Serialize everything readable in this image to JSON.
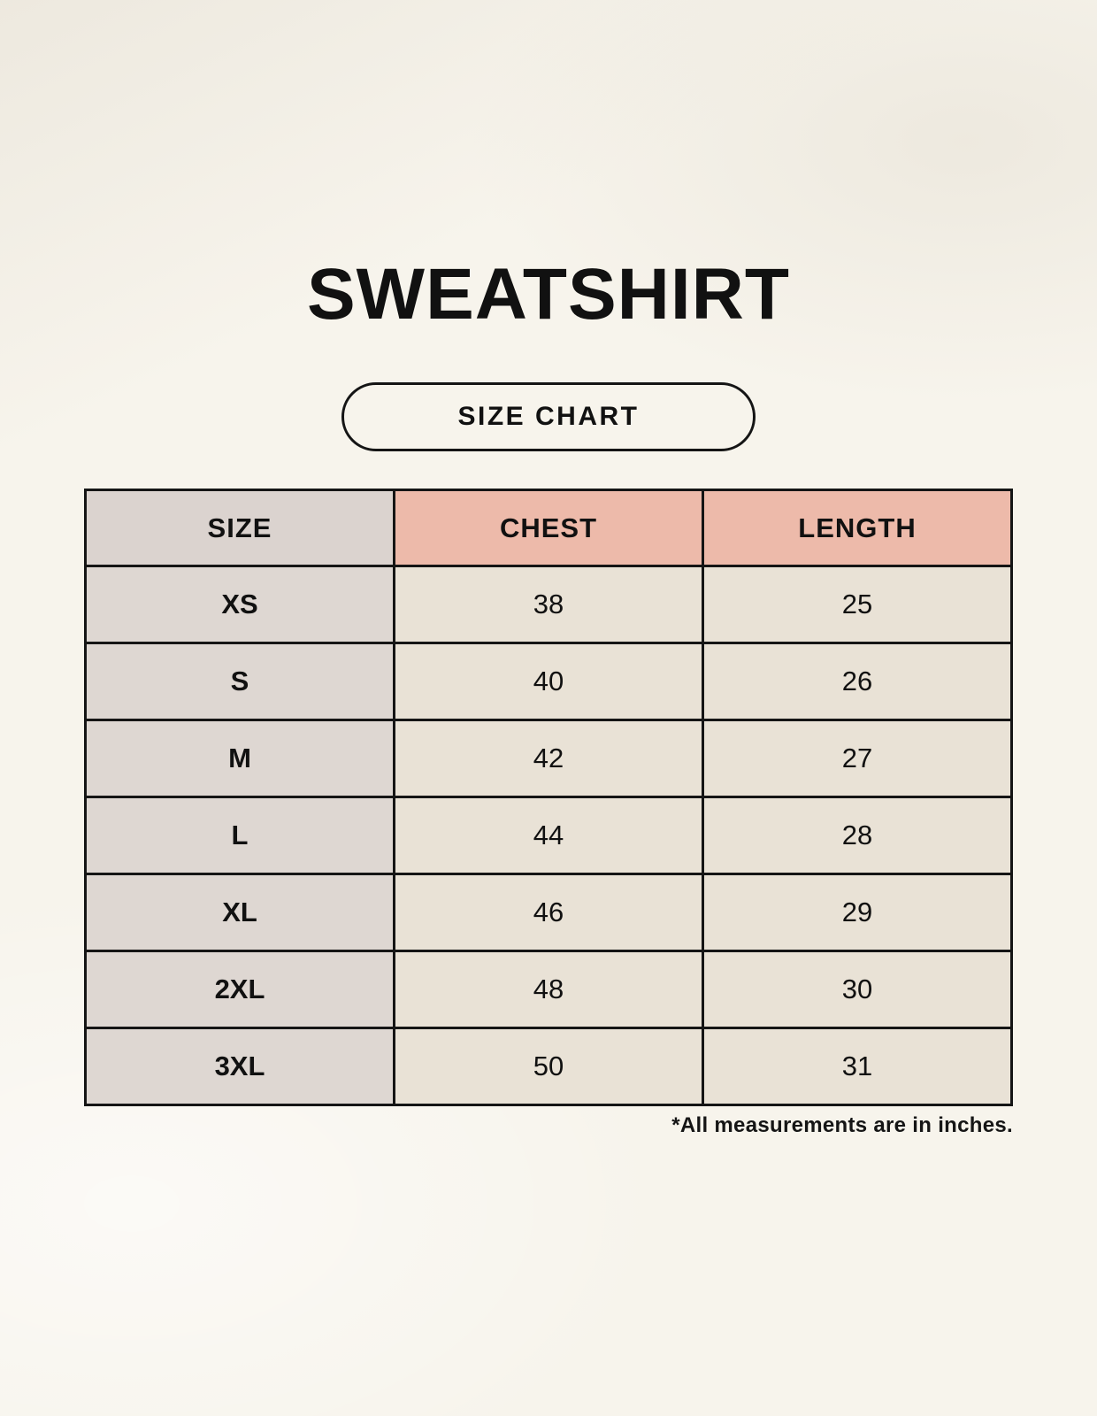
{
  "poster": {
    "title": "SWEATSHIRT",
    "size_chart_button_label": "SIZE CHART",
    "footnote": "*All measurements are in inches."
  },
  "chart_data": {
    "type": "table",
    "title": "SWEATSHIRT",
    "columns": [
      "SIZE",
      "CHEST",
      "LENGTH"
    ],
    "rows": [
      [
        "XS",
        "38",
        "25"
      ],
      [
        "S",
        "40",
        "26"
      ],
      [
        "M",
        "42",
        "27"
      ],
      [
        "L",
        "44",
        "28"
      ],
      [
        "XL",
        "46",
        "29"
      ],
      [
        "2XL",
        "48",
        "30"
      ],
      [
        "3XL",
        "50",
        "31"
      ]
    ],
    "units": "inches"
  },
  "colors": {
    "background": "#f7f4ec",
    "header_size_bg": "#dbd3cf",
    "header_measure_bg": "#edbaaa",
    "body_size_col_bg": "#ded7d2",
    "body_cell_bg": "#e9e2d6",
    "border": "#151515",
    "text": "#111111"
  }
}
